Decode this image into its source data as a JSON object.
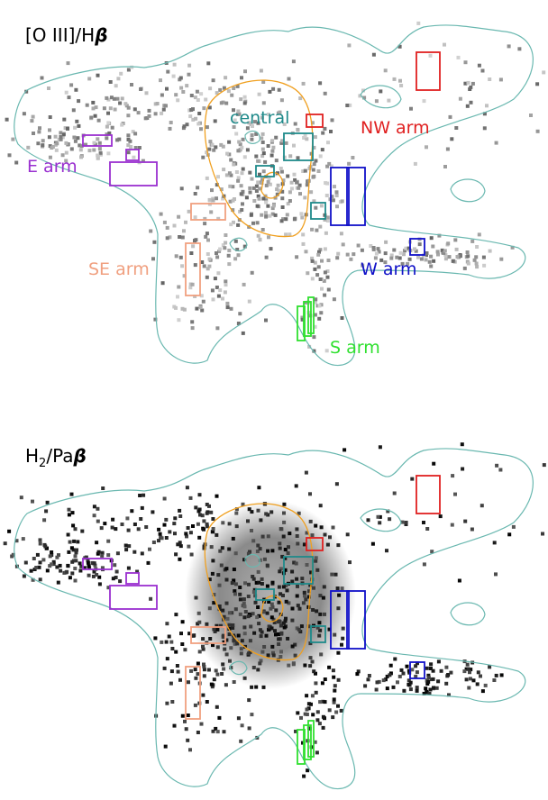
{
  "panels": [
    {
      "title": {
        "main": "[O III]/H",
        "greek": "β"
      }
    },
    {
      "title": {
        "main": "H",
        "sub": "2",
        "mid": "/Pa",
        "greek": "β"
      }
    }
  ],
  "regions": [
    {
      "label": "central",
      "color": "#1f8a8a"
    },
    {
      "label": "NW arm",
      "color": "#e02020"
    },
    {
      "label": "E arm",
      "color": "#9a30d0"
    },
    {
      "label": "SE arm",
      "color": "#f0a080"
    },
    {
      "label": "W arm",
      "color": "#1010c8"
    },
    {
      "label": "S arm",
      "color": "#30e030"
    }
  ]
}
